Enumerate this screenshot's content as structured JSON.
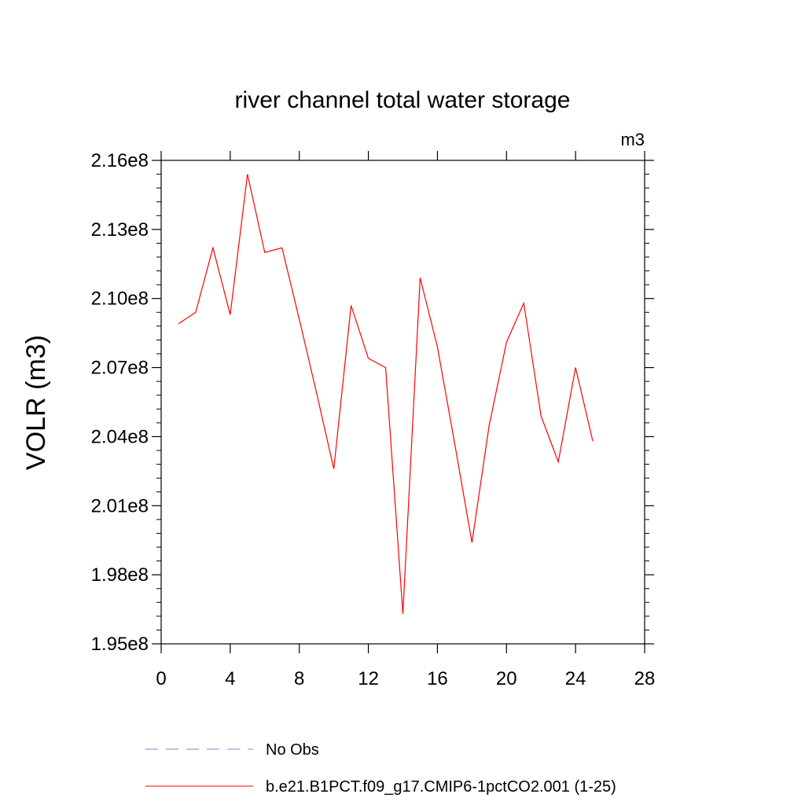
{
  "chart_data": {
    "type": "line",
    "title": "river channel total water storage",
    "units_label": "m3",
    "ylabel": "VOLR  (m3)",
    "xlabel": "",
    "xlim": [
      0,
      28
    ],
    "ylim": [
      195000000,
      216000000
    ],
    "x_ticks": [
      0,
      4,
      8,
      12,
      16,
      20,
      24,
      28
    ],
    "x_tick_labels": [
      "0",
      "4",
      "8",
      "12",
      "16",
      "20",
      "24",
      "28"
    ],
    "y_ticks": [
      195000000,
      198000000,
      201000000,
      204000000,
      207000000,
      210000000,
      213000000,
      216000000
    ],
    "y_tick_labels": [
      "1.95e8",
      "1.98e8",
      "2.01e8",
      "2.04e8",
      "2.07e8",
      "2.10e8",
      "2.13e8",
      "2.16e8"
    ],
    "grid": false,
    "legend_position": "bottom",
    "series": [
      {
        "name": "b.e21.B1PCT.f09_g17.CMIP6-1pctCO2.001 (1-25)",
        "color": "#ff0000",
        "line_style": "solid",
        "x": [
          1,
          2,
          3,
          4,
          5,
          6,
          7,
          8,
          9,
          10,
          11,
          12,
          13,
          14,
          15,
          16,
          17,
          18,
          19,
          20,
          21,
          22,
          23,
          24,
          25
        ],
        "y": [
          208900000,
          209400000,
          212200000,
          209300000,
          215400000,
          212000000,
          212200000,
          209100000,
          205900000,
          202600000,
          209700000,
          207400000,
          207000000,
          196300000,
          210900000,
          207900000,
          203700000,
          199400000,
          204500000,
          208100000,
          209800000,
          204900000,
          202900000,
          207000000,
          203800000
        ]
      }
    ],
    "legend": [
      {
        "label": "No Obs",
        "color": "#8080d0",
        "line_style": "dashed"
      },
      {
        "label": "b.e21.B1PCT.f09_g17.CMIP6-1pctCO2.001 (1-25)",
        "color": "#ff0000",
        "line_style": "solid"
      }
    ]
  }
}
